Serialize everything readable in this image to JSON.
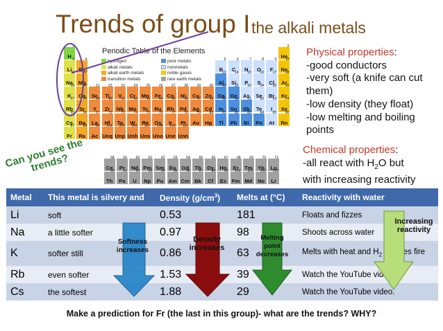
{
  "title": "Trends of group I",
  "subtitle": "the alkali metals",
  "periodic_table": {
    "title": "Periodic Table of the Elements",
    "legend_left": [
      "hydrogen",
      "alkali metals",
      "alkali earth metals",
      "transition metals"
    ],
    "legend_right": [
      "poor metals",
      "nonmetals",
      "noble gases",
      "rare earth metals"
    ],
    "colors": {
      "hydrogen": "#7fd640",
      "alkali": "#e0e048",
      "alkaline_earth": "#f5a623",
      "transition": "#f08a3c",
      "poor": "#4d8fe0",
      "nonmetal": "#cce0ff",
      "noble": "#f5c400",
      "rare_earth": "#a0a0a0"
    },
    "elements": [
      {
        "s": "H",
        "n": "1",
        "r": 1,
        "c": 1,
        "t": "hydrogen"
      },
      {
        "s": "He",
        "n": "2",
        "r": 1,
        "c": 18,
        "t": "noble"
      },
      {
        "s": "Li",
        "n": "3",
        "r": 2,
        "c": 1,
        "t": "alkali"
      },
      {
        "s": "Be",
        "n": "4",
        "r": 2,
        "c": 2,
        "t": "alkaline_earth"
      },
      {
        "s": "B",
        "n": "5",
        "r": 2,
        "c": 13,
        "t": "nonmetal"
      },
      {
        "s": "C",
        "n": "6",
        "r": 2,
        "c": 14,
        "t": "nonmetal"
      },
      {
        "s": "N",
        "n": "7",
        "r": 2,
        "c": 15,
        "t": "nonmetal"
      },
      {
        "s": "O",
        "n": "8",
        "r": 2,
        "c": 16,
        "t": "nonmetal"
      },
      {
        "s": "F",
        "n": "9",
        "r": 2,
        "c": 17,
        "t": "nonmetal"
      },
      {
        "s": "Ne",
        "n": "10",
        "r": 2,
        "c": 18,
        "t": "noble"
      },
      {
        "s": "Na",
        "n": "11",
        "r": 3,
        "c": 1,
        "t": "alkali"
      },
      {
        "s": "Mg",
        "n": "12",
        "r": 3,
        "c": 2,
        "t": "alkaline_earth"
      },
      {
        "s": "Al",
        "n": "13",
        "r": 3,
        "c": 13,
        "t": "poor"
      },
      {
        "s": "Si",
        "n": "14",
        "r": 3,
        "c": 14,
        "t": "nonmetal"
      },
      {
        "s": "P",
        "n": "15",
        "r": 3,
        "c": 15,
        "t": "nonmetal"
      },
      {
        "s": "S",
        "n": "16",
        "r": 3,
        "c": 16,
        "t": "nonmetal"
      },
      {
        "s": "Cl",
        "n": "17",
        "r": 3,
        "c": 17,
        "t": "nonmetal"
      },
      {
        "s": "Ar",
        "n": "18",
        "r": 3,
        "c": 18,
        "t": "noble"
      },
      {
        "s": "K",
        "n": "19",
        "r": 4,
        "c": 1,
        "t": "alkali"
      },
      {
        "s": "Ca",
        "n": "20",
        "r": 4,
        "c": 2,
        "t": "alkaline_earth"
      },
      {
        "s": "Sc",
        "n": "21",
        "r": 4,
        "c": 3,
        "t": "transition"
      },
      {
        "s": "Ti",
        "n": "22",
        "r": 4,
        "c": 4,
        "t": "transition"
      },
      {
        "s": "V",
        "n": "23",
        "r": 4,
        "c": 5,
        "t": "transition"
      },
      {
        "s": "Cr",
        "n": "24",
        "r": 4,
        "c": 6,
        "t": "transition"
      },
      {
        "s": "Mn",
        "n": "25",
        "r": 4,
        "c": 7,
        "t": "transition"
      },
      {
        "s": "Fe",
        "n": "26",
        "r": 4,
        "c": 8,
        "t": "transition"
      },
      {
        "s": "Co",
        "n": "27",
        "r": 4,
        "c": 9,
        "t": "transition"
      },
      {
        "s": "Ni",
        "n": "28",
        "r": 4,
        "c": 10,
        "t": "transition"
      },
      {
        "s": "Cu",
        "n": "29",
        "r": 4,
        "c": 11,
        "t": "transition"
      },
      {
        "s": "Zn",
        "n": "30",
        "r": 4,
        "c": 12,
        "t": "transition"
      },
      {
        "s": "Ga",
        "n": "31",
        "r": 4,
        "c": 13,
        "t": "poor"
      },
      {
        "s": "Ge",
        "n": "32",
        "r": 4,
        "c": 14,
        "t": "poor"
      },
      {
        "s": "As",
        "n": "33",
        "r": 4,
        "c": 15,
        "t": "nonmetal"
      },
      {
        "s": "Se",
        "n": "34",
        "r": 4,
        "c": 16,
        "t": "nonmetal"
      },
      {
        "s": "Br",
        "n": "35",
        "r": 4,
        "c": 17,
        "t": "nonmetal"
      },
      {
        "s": "Kr",
        "n": "36",
        "r": 4,
        "c": 18,
        "t": "noble"
      },
      {
        "s": "Rb",
        "n": "37",
        "r": 5,
        "c": 1,
        "t": "alkali"
      },
      {
        "s": "Sr",
        "n": "38",
        "r": 5,
        "c": 2,
        "t": "alkaline_earth"
      },
      {
        "s": "Y",
        "n": "39",
        "r": 5,
        "c": 3,
        "t": "transition"
      },
      {
        "s": "Zr",
        "n": "40",
        "r": 5,
        "c": 4,
        "t": "transition"
      },
      {
        "s": "Nb",
        "n": "41",
        "r": 5,
        "c": 5,
        "t": "transition"
      },
      {
        "s": "Mo",
        "n": "42",
        "r": 5,
        "c": 6,
        "t": "transition"
      },
      {
        "s": "Tc",
        "n": "43",
        "r": 5,
        "c": 7,
        "t": "transition"
      },
      {
        "s": "Ru",
        "n": "44",
        "r": 5,
        "c": 8,
        "t": "transition"
      },
      {
        "s": "Rh",
        "n": "45",
        "r": 5,
        "c": 9,
        "t": "transition"
      },
      {
        "s": "Pd",
        "n": "46",
        "r": 5,
        "c": 10,
        "t": "transition"
      },
      {
        "s": "Ag",
        "n": "47",
        "r": 5,
        "c": 11,
        "t": "transition"
      },
      {
        "s": "Cd",
        "n": "48",
        "r": 5,
        "c": 12,
        "t": "transition"
      },
      {
        "s": "In",
        "n": "49",
        "r": 5,
        "c": 13,
        "t": "poor"
      },
      {
        "s": "Sn",
        "n": "50",
        "r": 5,
        "c": 14,
        "t": "poor"
      },
      {
        "s": "Sb",
        "n": "51",
        "r": 5,
        "c": 15,
        "t": "poor"
      },
      {
        "s": "Te",
        "n": "52",
        "r": 5,
        "c": 16,
        "t": "nonmetal"
      },
      {
        "s": "I",
        "n": "53",
        "r": 5,
        "c": 17,
        "t": "nonmetal"
      },
      {
        "s": "Xe",
        "n": "54",
        "r": 5,
        "c": 18,
        "t": "noble"
      },
      {
        "s": "Cs",
        "n": "55",
        "r": 6,
        "c": 1,
        "t": "alkali"
      },
      {
        "s": "Ba",
        "n": "56",
        "r": 6,
        "c": 2,
        "t": "alkaline_earth"
      },
      {
        "s": "La",
        "n": "57",
        "r": 6,
        "c": 3,
        "t": "transition"
      },
      {
        "s": "Hf",
        "n": "72",
        "r": 6,
        "c": 4,
        "t": "transition"
      },
      {
        "s": "Ta",
        "n": "73",
        "r": 6,
        "c": 5,
        "t": "transition"
      },
      {
        "s": "W",
        "n": "74",
        "r": 6,
        "c": 6,
        "t": "transition"
      },
      {
        "s": "Re",
        "n": "75",
        "r": 6,
        "c": 7,
        "t": "transition"
      },
      {
        "s": "Os",
        "n": "76",
        "r": 6,
        "c": 8,
        "t": "transition"
      },
      {
        "s": "Ir",
        "n": "77",
        "r": 6,
        "c": 9,
        "t": "transition"
      },
      {
        "s": "Pt",
        "n": "78",
        "r": 6,
        "c": 10,
        "t": "transition"
      },
      {
        "s": "Au",
        "n": "79",
        "r": 6,
        "c": 11,
        "t": "transition"
      },
      {
        "s": "Hg",
        "n": "80",
        "r": 6,
        "c": 12,
        "t": "transition"
      },
      {
        "s": "Tl",
        "n": "81",
        "r": 6,
        "c": 13,
        "t": "poor"
      },
      {
        "s": "Pb",
        "n": "82",
        "r": 6,
        "c": 14,
        "t": "poor"
      },
      {
        "s": "Bi",
        "n": "83",
        "r": 6,
        "c": 15,
        "t": "poor"
      },
      {
        "s": "Po",
        "n": "84",
        "r": 6,
        "c": 16,
        "t": "poor"
      },
      {
        "s": "At",
        "n": "85",
        "r": 6,
        "c": 17,
        "t": "nonmetal"
      },
      {
        "s": "Rn",
        "n": "86",
        "r": 6,
        "c": 18,
        "t": "noble"
      },
      {
        "s": "Fr",
        "n": "87",
        "r": 7,
        "c": 1,
        "t": "alkali"
      },
      {
        "s": "Ra",
        "n": "88",
        "r": 7,
        "c": 2,
        "t": "alkaline_earth"
      },
      {
        "s": "Ac",
        "n": "89",
        "r": 7,
        "c": 3,
        "t": "transition"
      },
      {
        "s": "Unq",
        "n": "104",
        "r": 7,
        "c": 4,
        "t": "transition"
      },
      {
        "s": "Unp",
        "n": "105",
        "r": 7,
        "c": 5,
        "t": "transition"
      },
      {
        "s": "Unh",
        "n": "106",
        "r": 7,
        "c": 6,
        "t": "transition"
      },
      {
        "s": "Uns",
        "n": "107",
        "r": 7,
        "c": 7,
        "t": "transition"
      },
      {
        "s": "Uno",
        "n": "108",
        "r": 7,
        "c": 8,
        "t": "transition"
      },
      {
        "s": "Une",
        "n": "109",
        "r": 7,
        "c": 9,
        "t": "transition"
      },
      {
        "s": "Unn",
        "n": "110",
        "r": 7,
        "c": 10,
        "t": "transition"
      },
      {
        "s": "Ce",
        "n": "58",
        "r": 9,
        "c": 4,
        "t": "rare_earth"
      },
      {
        "s": "Pr",
        "n": "59",
        "r": 9,
        "c": 5,
        "t": "rare_earth"
      },
      {
        "s": "Nd",
        "n": "60",
        "r": 9,
        "c": 6,
        "t": "rare_earth"
      },
      {
        "s": "Pm",
        "n": "61",
        "r": 9,
        "c": 7,
        "t": "rare_earth"
      },
      {
        "s": "Sm",
        "n": "62",
        "r": 9,
        "c": 8,
        "t": "rare_earth"
      },
      {
        "s": "Eu",
        "n": "63",
        "r": 9,
        "c": 9,
        "t": "rare_earth"
      },
      {
        "s": "Gd",
        "n": "64",
        "r": 9,
        "c": 10,
        "t": "rare_earth"
      },
      {
        "s": "Tb",
        "n": "65",
        "r": 9,
        "c": 11,
        "t": "rare_earth"
      },
      {
        "s": "Dy",
        "n": "66",
        "r": 9,
        "c": 12,
        "t": "rare_earth"
      },
      {
        "s": "Ho",
        "n": "67",
        "r": 9,
        "c": 13,
        "t": "rare_earth"
      },
      {
        "s": "Er",
        "n": "68",
        "r": 9,
        "c": 14,
        "t": "rare_earth"
      },
      {
        "s": "Tm",
        "n": "69",
        "r": 9,
        "c": 15,
        "t": "rare_earth"
      },
      {
        "s": "Yb",
        "n": "70",
        "r": 9,
        "c": 16,
        "t": "rare_earth"
      },
      {
        "s": "Lu",
        "n": "71",
        "r": 9,
        "c": 17,
        "t": "rare_earth"
      },
      {
        "s": "Th",
        "n": "90",
        "r": 10,
        "c": 4,
        "t": "rare_earth"
      },
      {
        "s": "Pa",
        "n": "91",
        "r": 10,
        "c": 5,
        "t": "rare_earth"
      },
      {
        "s": "U",
        "n": "92",
        "r": 10,
        "c": 6,
        "t": "rare_earth"
      },
      {
        "s": "Np",
        "n": "93",
        "r": 10,
        "c": 7,
        "t": "rare_earth"
      },
      {
        "s": "Pu",
        "n": "94",
        "r": 10,
        "c": 8,
        "t": "rare_earth"
      },
      {
        "s": "Am",
        "n": "95",
        "r": 10,
        "c": 9,
        "t": "rare_earth"
      },
      {
        "s": "Cm",
        "n": "96",
        "r": 10,
        "c": 10,
        "t": "rare_earth"
      },
      {
        "s": "Bk",
        "n": "97",
        "r": 10,
        "c": 11,
        "t": "rare_earth"
      },
      {
        "s": "Cf",
        "n": "98",
        "r": 10,
        "c": 12,
        "t": "rare_earth"
      },
      {
        "s": "Es",
        "n": "99",
        "r": 10,
        "c": 13,
        "t": "rare_earth"
      },
      {
        "s": "Fm",
        "n": "100",
        "r": 10,
        "c": 14,
        "t": "rare_earth"
      },
      {
        "s": "Md",
        "n": "101",
        "r": 10,
        "c": 15,
        "t": "rare_earth"
      },
      {
        "s": "No",
        "n": "102",
        "r": 10,
        "c": 16,
        "t": "rare_earth"
      },
      {
        "s": "Lr",
        "n": "103",
        "r": 10,
        "c": 17,
        "t": "rare_earth"
      }
    ]
  },
  "physical": {
    "heading": "Physical properties",
    "heading_suffix": ":",
    "items": [
      "-good conductors",
      "-very soft (a knife can cut them)",
      "-low density (they float)",
      "-low melting and boiling points"
    ]
  },
  "chemical": {
    "heading": "Chemical properties",
    "heading_suffix": ":",
    "line1_pre": "-all react with H",
    "line1_sub": "2",
    "line1_post": "O but",
    "line2": "with increasing reactivity"
  },
  "callout": {
    "line1": "Can you see the",
    "line2": "trends?"
  },
  "table": {
    "headers": {
      "metal": "Metal",
      "desc": "This metal is silvery and",
      "density_pre": "Density (g/cm",
      "density_sup": "3",
      "density_post": ")",
      "melt": "Melts at (°C)",
      "react": "Reactivity with water"
    },
    "rows": [
      {
        "metal": "Li",
        "desc": "soft",
        "density": "0.53",
        "melt": "181",
        "react_pre": "Floats and fizzes",
        "react_sub": "",
        "react_post": ""
      },
      {
        "metal": "Na",
        "desc": "a little softer",
        "density": "0.97",
        "melt": "98",
        "react_pre": "Shoots across water",
        "react_sub": "",
        "react_post": ""
      },
      {
        "metal": "K",
        "desc": "softer still",
        "density": "0.86",
        "melt": "63",
        "react_pre": "Melts with heat and H",
        "react_sub": "2",
        "react_post": " catches fire"
      },
      {
        "metal": "Rb",
        "desc": "even softer",
        "density": "1.53",
        "melt": "39",
        "react_pre": "Watch the YouTube video.",
        "react_sub": "",
        "react_post": ""
      },
      {
        "metal": "Cs",
        "desc": "the softest",
        "density": "1.88",
        "melt": "29",
        "react_pre": "Watch the YouTube video.",
        "react_sub": "",
        "react_post": ""
      }
    ]
  },
  "arrows": {
    "softness": {
      "line1": "Softness",
      "line2": "increases",
      "color": "#2a86c9"
    },
    "density": {
      "line1": "Density",
      "line2": "increases",
      "color": "#8b0e0e"
    },
    "melting": {
      "line1": "Melting",
      "line2": "point",
      "line3": "decreases",
      "color": "#2e8b2e"
    },
    "reactivity": {
      "line1": "Increasing",
      "line2": "reactivity",
      "color": "#b7de7a"
    }
  },
  "question": "Make a prediction for Fr (the last in this group)- what are the trends? WHY?"
}
